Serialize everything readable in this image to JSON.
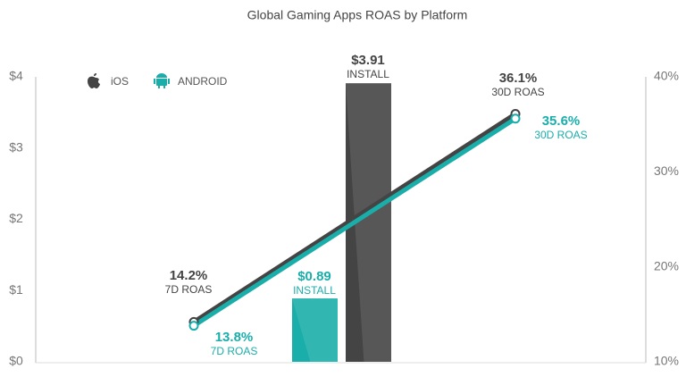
{
  "chart_data": {
    "type": "combo",
    "title": "Global Gaming Apps ROAS by Platform",
    "legend": "top-left",
    "ylim": [
      0,
      4
    ],
    "yticks": [
      {
        "value": 0,
        "label": "$0"
      },
      {
        "value": 1,
        "label": "$1"
      },
      {
        "value": 2,
        "label": "$2"
      },
      {
        "value": 3,
        "label": "$3"
      },
      {
        "value": 4,
        "label": "$4"
      }
    ],
    "y2lim": [
      10,
      40
    ],
    "y2ticks": [
      {
        "value": 10,
        "label": "10%"
      },
      {
        "value": 20,
        "label": "20%"
      },
      {
        "value": 30,
        "label": "30%"
      },
      {
        "value": 40,
        "label": "40%"
      }
    ],
    "bar_label": "INSTALL",
    "categories": [
      "7D ROAS",
      "30D ROAS"
    ],
    "series": [
      {
        "name": "iOS",
        "color": "#444444",
        "install": 3.91,
        "install_label": "$3.91",
        "values": [
          14.2,
          36.1
        ],
        "value_labels": [
          "14.2%",
          "36.1%"
        ],
        "axis": "y2"
      },
      {
        "name": "ANDROID",
        "color": "#1aaeaa",
        "install": 0.89,
        "install_label": "$0.89",
        "values": [
          13.8,
          35.6
        ],
        "value_labels": [
          "13.8%",
          "35.6%"
        ],
        "axis": "y2"
      }
    ]
  }
}
